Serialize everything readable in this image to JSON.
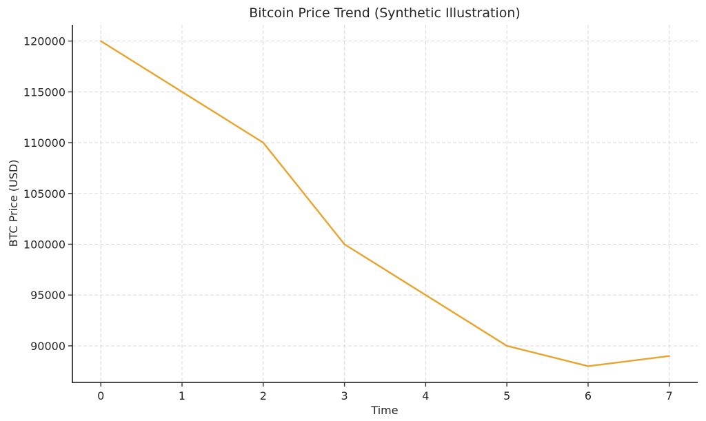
{
  "figure": {
    "title": "Bitcoin Price Trend (Synthetic Illustration)",
    "xlabel": "Time",
    "ylabel": "BTC Price (USD)"
  },
  "chart_data": {
    "type": "line",
    "title": "Bitcoin Price Trend (Synthetic Illustration)",
    "xlabel": "Time",
    "ylabel": "BTC Price (USD)",
    "series": [
      {
        "name": "BTC Price",
        "x": [
          0,
          1,
          2,
          3,
          4,
          5,
          6,
          7
        ],
        "y": [
          120000,
          115000,
          110000,
          100000,
          95000,
          90000,
          88000,
          89000
        ]
      }
    ],
    "xticks": [
      0,
      1,
      2,
      3,
      4,
      5,
      6,
      7
    ],
    "yticks": [
      90000,
      95000,
      100000,
      105000,
      110000,
      115000,
      120000
    ],
    "xlim": [
      -0.35,
      7.35
    ],
    "ylim": [
      86400,
      121600
    ],
    "grid": true,
    "grid_style": "dashed",
    "legend_position": "none",
    "colors": {
      "line": "#EAA32C",
      "grid": "#dcdcdc",
      "spine": "#333333",
      "tick": "#333333",
      "text": "#262626",
      "background": "#ffffff"
    }
  }
}
